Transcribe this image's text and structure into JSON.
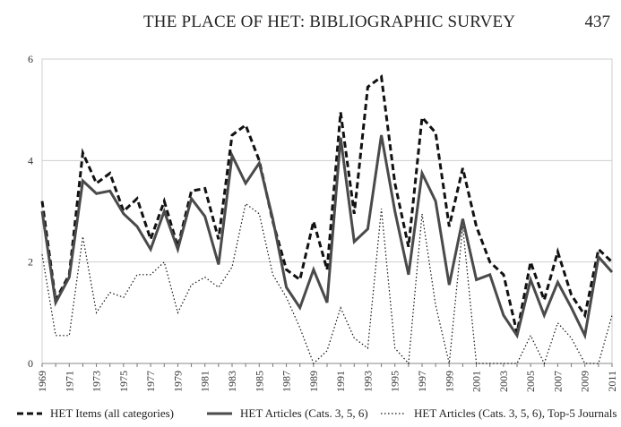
{
  "header": {
    "running_title": "THE PLACE OF HET: BIBLIOGRAPHIC SURVEY",
    "page_number": "437"
  },
  "chart_data": {
    "type": "line",
    "title": "",
    "xlabel": "",
    "ylabel": "",
    "x": [
      1969,
      1970,
      1971,
      1972,
      1973,
      1974,
      1975,
      1976,
      1977,
      1978,
      1979,
      1980,
      1981,
      1982,
      1983,
      1984,
      1985,
      1986,
      1987,
      1988,
      1989,
      1990,
      1991,
      1992,
      1993,
      1994,
      1995,
      1996,
      1997,
      1998,
      1999,
      2000,
      2001,
      2002,
      2003,
      2004,
      2005,
      2006,
      2007,
      2008,
      2009,
      2010,
      2011
    ],
    "x_tick_labels": [
      "1969",
      "1971",
      "1973",
      "1975",
      "1977",
      "1979",
      "1981",
      "1983",
      "1985",
      "1987",
      "1989",
      "1991",
      "1993",
      "1995",
      "1997",
      "1999",
      "2001",
      "2003",
      "2005",
      "2007",
      "2009",
      "2011"
    ],
    "y_ticks": [
      "0",
      "2",
      "4",
      "6"
    ],
    "ylim": [
      0,
      6
    ],
    "xlim": [
      1969,
      2011
    ],
    "grid": "horizontal",
    "legend_position": "bottom",
    "series": [
      {
        "name": "HET Items (all categories)",
        "style": "dashed",
        "color": "#111111",
        "values": [
          3.2,
          1.25,
          1.75,
          4.15,
          3.55,
          3.75,
          3.0,
          3.25,
          2.45,
          3.2,
          2.3,
          3.4,
          3.45,
          2.45,
          4.5,
          4.7,
          4.0,
          2.8,
          1.85,
          1.65,
          2.8,
          1.85,
          4.95,
          2.95,
          5.45,
          5.65,
          3.55,
          2.3,
          4.85,
          4.55,
          2.7,
          3.85,
          2.7,
          2.0,
          1.75,
          0.6,
          2.0,
          1.25,
          2.2,
          1.35,
          0.95,
          2.25,
          2.0
        ]
      },
      {
        "name": "HET Articles (Cats. 3, 5, 6)",
        "style": "solid",
        "color": "#4a4a4a",
        "values": [
          3.0,
          1.2,
          1.7,
          3.6,
          3.35,
          3.4,
          2.95,
          2.7,
          2.25,
          3.0,
          2.25,
          3.25,
          2.9,
          1.95,
          4.1,
          3.55,
          3.95,
          2.85,
          1.5,
          1.1,
          1.85,
          1.2,
          4.45,
          2.4,
          2.65,
          4.5,
          3.0,
          1.75,
          3.75,
          3.2,
          1.55,
          2.85,
          1.65,
          1.75,
          0.95,
          0.55,
          1.65,
          0.95,
          1.6,
          1.1,
          0.55,
          2.1,
          1.8
        ]
      },
      {
        "name": "HET Articles (Cats. 3, 5, 6), Top-5 Journals",
        "style": "dotted",
        "color": "#111111",
        "values": [
          2.15,
          0.55,
          0.55,
          2.5,
          1.0,
          1.4,
          1.3,
          1.75,
          1.75,
          2.0,
          1.0,
          1.55,
          1.7,
          1.5,
          1.9,
          3.15,
          2.95,
          1.75,
          1.3,
          0.7,
          0.0,
          0.25,
          1.1,
          0.5,
          0.3,
          3.05,
          0.3,
          0.0,
          2.95,
          1.15,
          0.0,
          2.7,
          0.0,
          0.0,
          0.0,
          0.0,
          0.55,
          0.0,
          0.8,
          0.5,
          0.0,
          0.0,
          0.95
        ]
      }
    ]
  }
}
